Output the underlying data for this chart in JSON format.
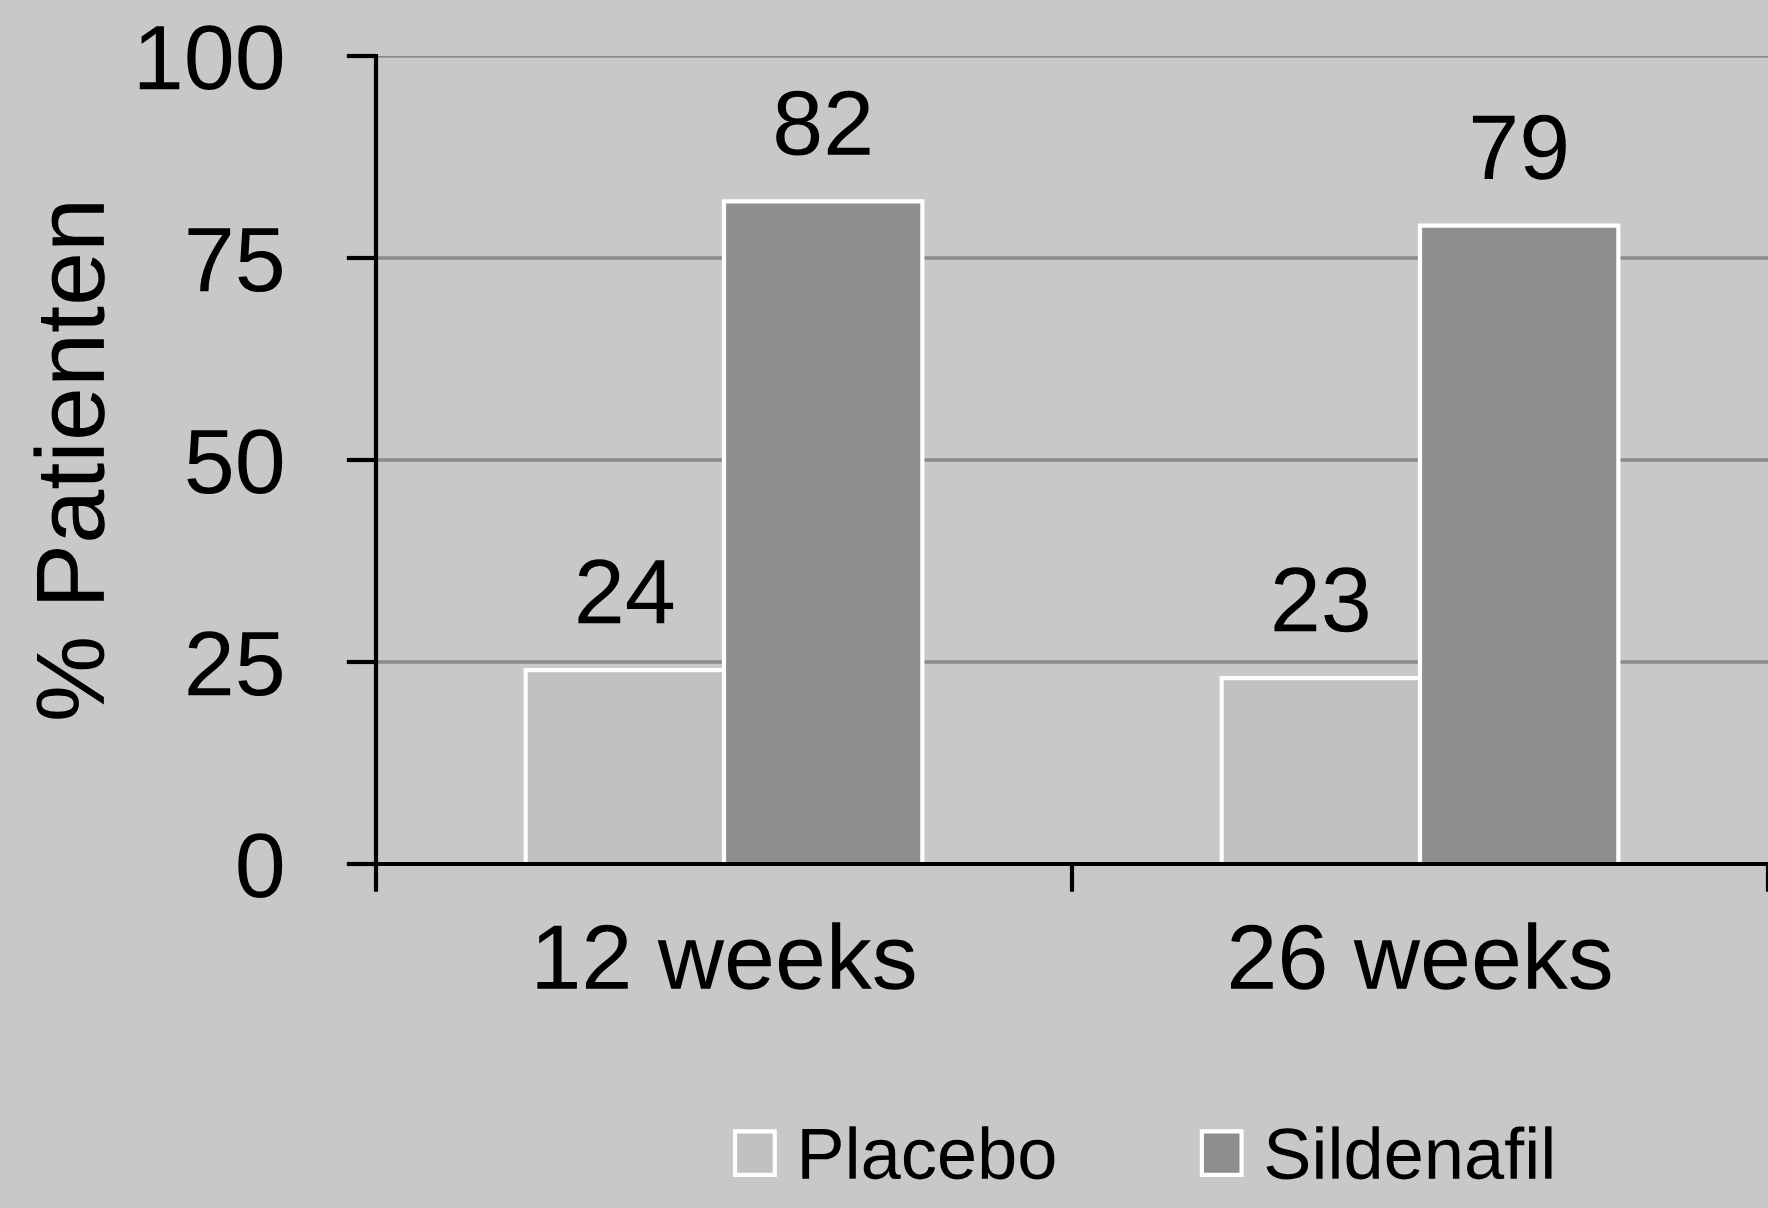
{
  "chart_data": {
    "type": "bar",
    "ylabel": "% Patienten",
    "categories": [
      "12 weeks",
      "26 weeks"
    ],
    "series": [
      {
        "name": "Placebo",
        "color": "#c0c0c0",
        "values": [
          24,
          23
        ]
      },
      {
        "name": "Sildenafil",
        "color": "#8e8e8e",
        "values": [
          82,
          79
        ]
      }
    ],
    "ylim": [
      0,
      100
    ],
    "yticks": [
      0,
      25,
      50,
      75,
      100
    ],
    "grid": "y",
    "legend": "bottom",
    "data_labels": true
  }
}
